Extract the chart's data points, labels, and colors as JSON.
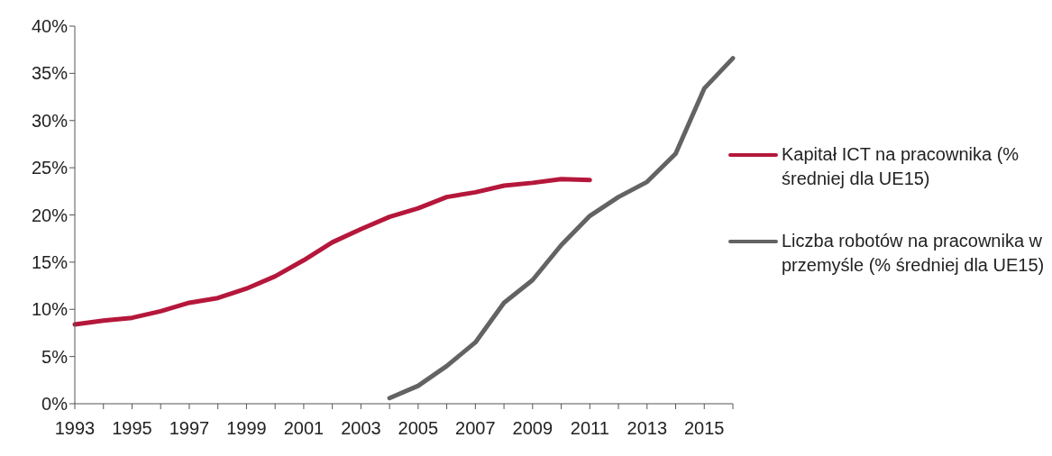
{
  "chart_data": {
    "type": "line",
    "categories": [
      "1993",
      null,
      "1995",
      null,
      "1997",
      null,
      "1999",
      null,
      "2001",
      null,
      "2003",
      null,
      "2005",
      null,
      "2007",
      null,
      "2009",
      null,
      "2011",
      null,
      "2013",
      null,
      "2015",
      null
    ],
    "series": [
      {
        "name": "Kapitał ICT na pracownika (% średniej dla UE15)",
        "color": "#b5173b",
        "values": [
          8.4,
          8.8,
          9.1,
          9.8,
          10.7,
          11.2,
          12.2,
          13.5,
          15.2,
          17.1,
          18.5,
          19.8,
          20.7,
          21.9,
          22.4,
          23.1,
          23.4,
          23.8,
          23.7,
          null,
          null,
          null,
          null,
          null
        ]
      },
      {
        "name": "Liczba robotów na pracownika w przemyśle (% średniej dla UE15)",
        "color": "#636363",
        "values": [
          null,
          null,
          null,
          null,
          null,
          null,
          null,
          null,
          null,
          null,
          null,
          0.6,
          1.9,
          4.0,
          6.5,
          10.7,
          13.1,
          16.8,
          19.9,
          21.9,
          23.5,
          26.5,
          33.4,
          36.6
        ]
      }
    ],
    "ylim": [
      0,
      40
    ],
    "yticks": [
      {
        "value": 0,
        "label": "0%"
      },
      {
        "value": 5,
        "label": "5%"
      },
      {
        "value": 10,
        "label": "10%"
      },
      {
        "value": 15,
        "label": "15%"
      },
      {
        "value": 20,
        "label": "20%"
      },
      {
        "value": 25,
        "label": "25%"
      },
      {
        "value": 30,
        "label": "30%"
      },
      {
        "value": 35,
        "label": "35%"
      },
      {
        "value": 40,
        "label": "40%"
      }
    ],
    "grid": false,
    "legend": "right",
    "marker": "none",
    "line_style": "solid"
  }
}
